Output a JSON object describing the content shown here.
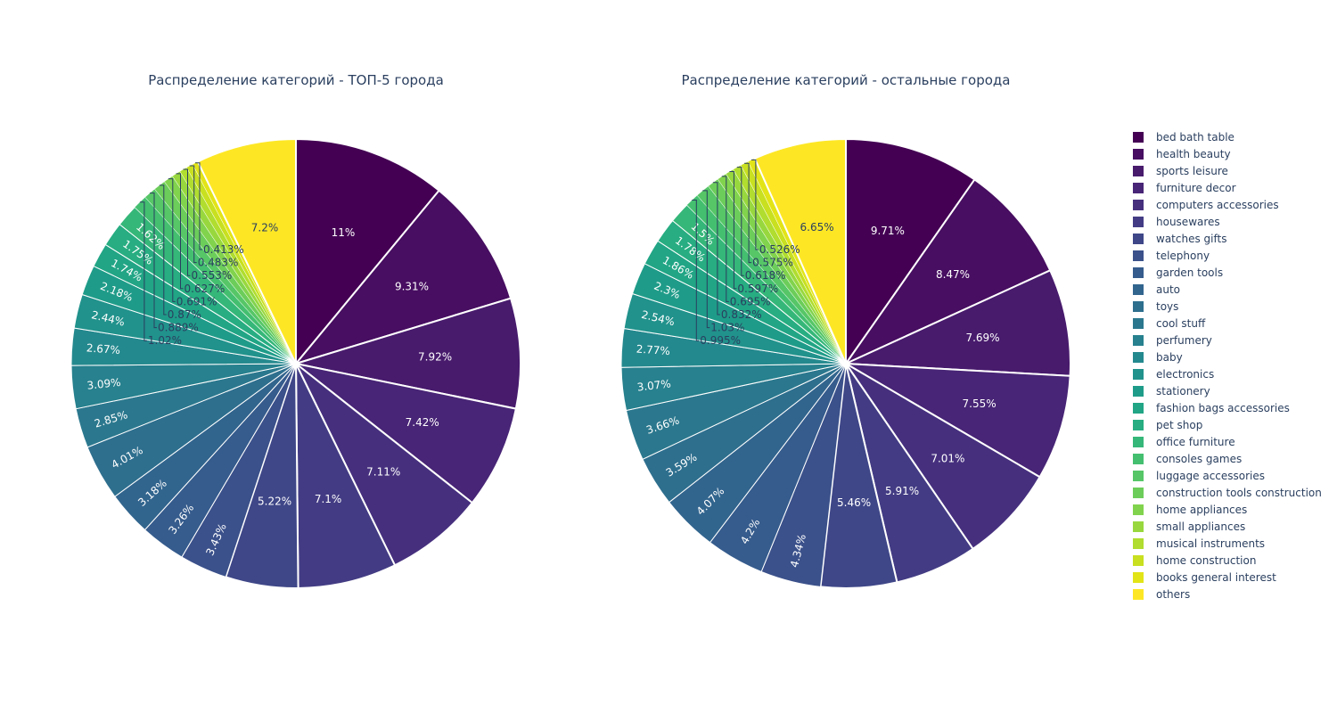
{
  "legend": {
    "items": [
      {
        "label": "bed bath table",
        "color": "#440154"
      },
      {
        "label": "health beauty",
        "color": "#470e61"
      },
      {
        "label": "sports leisure",
        "color": "#481b6d"
      },
      {
        "label": "furniture decor",
        "color": "#482576"
      },
      {
        "label": "computers accessories",
        "color": "#46307e"
      },
      {
        "label": "housewares",
        "color": "#433c84"
      },
      {
        "label": "watches gifts",
        "color": "#3f4788"
      },
      {
        "label": "telephony",
        "color": "#3b518b"
      },
      {
        "label": "garden tools",
        "color": "#365c8d"
      },
      {
        "label": "auto",
        "color": "#32658e"
      },
      {
        "label": "toys",
        "color": "#2e6f8e"
      },
      {
        "label": "cool stuff",
        "color": "#2b788e"
      },
      {
        "label": "perfumery",
        "color": "#27818e"
      },
      {
        "label": "baby",
        "color": "#24898e"
      },
      {
        "label": "electronics",
        "color": "#21928c"
      },
      {
        "label": "stationery",
        "color": "#1f9c89"
      },
      {
        "label": "fashion bags accessories",
        "color": "#21a585"
      },
      {
        "label": "pet shop",
        "color": "#27ad81"
      },
      {
        "label": "office furniture",
        "color": "#35b779"
      },
      {
        "label": "consoles games",
        "color": "#44bf70"
      },
      {
        "label": "luggage accessories",
        "color": "#56c667"
      },
      {
        "label": "construction tools construction",
        "color": "#6ccd5a"
      },
      {
        "label": "home appliances",
        "color": "#81d34d"
      },
      {
        "label": "small appliances",
        "color": "#98d83e"
      },
      {
        "label": "musical instruments",
        "color": "#b0dd2f"
      },
      {
        "label": "home construction",
        "color": "#c8e020"
      },
      {
        "label": "books general interest",
        "color": "#e2e418"
      },
      {
        "label": "others",
        "color": "#fde725"
      }
    ]
  },
  "chart_data": [
    {
      "type": "pie",
      "title": "Распределение категорий - ТОП-5 города",
      "labels": [
        "11%",
        "9.31%",
        "7.92%",
        "7.42%",
        "7.11%",
        "7.1%",
        "5.22%",
        "3.43%",
        "3.26%",
        "3.18%",
        "4.01%",
        "2.85%",
        "3.09%",
        "2.67%",
        "2.44%",
        "2.18%",
        "1.74%",
        "1.75%",
        "1.62%",
        "1.02%",
        "0.889%",
        "0.87%",
        "0.691%",
        "0.627%",
        "0.553%",
        "0.483%",
        "0.413%",
        "7.2%"
      ],
      "values": [
        11,
        9.31,
        7.92,
        7.42,
        7.11,
        7.1,
        5.22,
        3.43,
        3.26,
        3.18,
        4.01,
        2.85,
        3.09,
        2.67,
        2.44,
        2.18,
        1.74,
        1.75,
        1.62,
        1.02,
        0.889,
        0.87,
        0.691,
        0.627,
        0.553,
        0.483,
        0.413,
        7.2
      ]
    },
    {
      "type": "pie",
      "title": "Распределение категорий - остальные города",
      "labels": [
        "9.71%",
        "8.47%",
        "7.69%",
        "7.55%",
        "7.01%",
        "5.91%",
        "5.46%",
        "4.34%",
        "4.2%",
        "4.07%",
        "3.59%",
        "3.66%",
        "3.07%",
        "2.77%",
        "2.54%",
        "2.3%",
        "1.86%",
        "1.78%",
        "1.5%",
        "0.995%",
        "1.03%",
        "0.832%",
        "0.695%",
        "0.597%",
        "0.618%",
        "0.575%",
        "0.526%",
        "6.65%"
      ],
      "values": [
        9.71,
        8.47,
        7.69,
        7.55,
        7.01,
        5.91,
        5.46,
        4.34,
        4.2,
        4.07,
        3.59,
        3.66,
        3.07,
        2.77,
        2.54,
        2.3,
        1.86,
        1.78,
        1.5,
        0.995,
        1.03,
        0.832,
        0.695,
        0.597,
        0.618,
        0.575,
        0.526,
        6.65
      ]
    }
  ]
}
